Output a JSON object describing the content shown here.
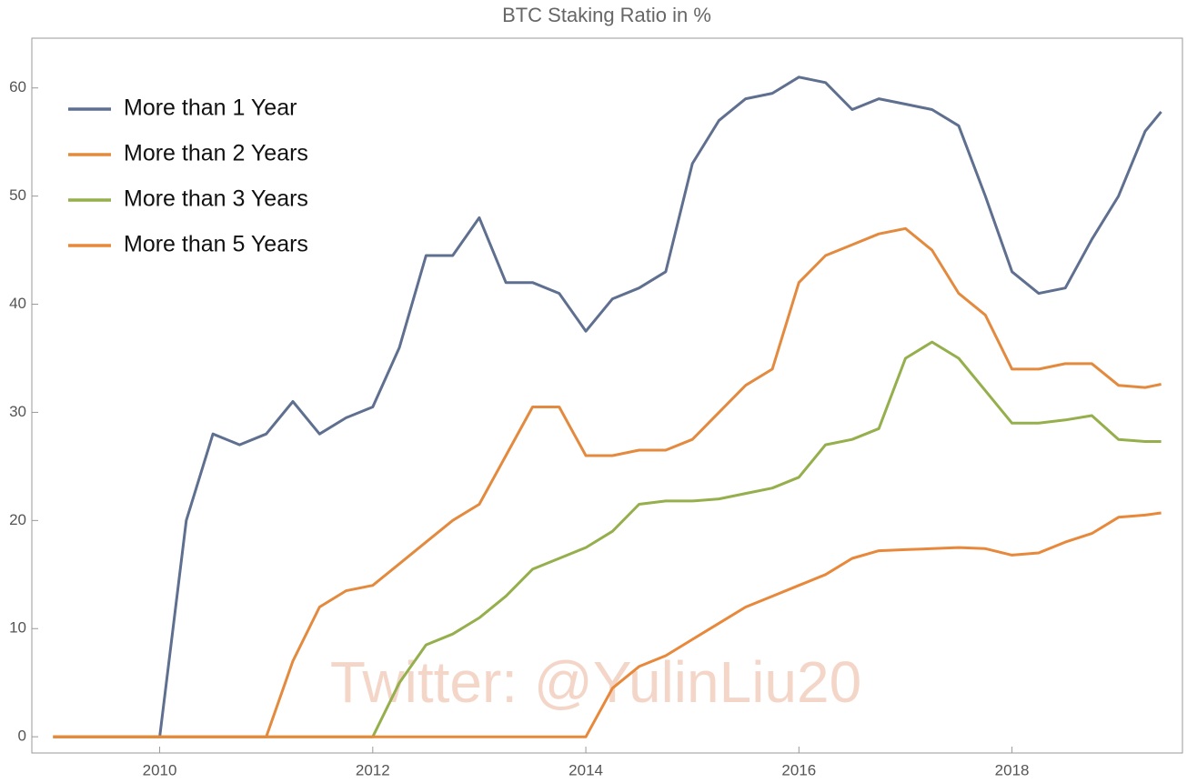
{
  "chart_data": {
    "type": "line",
    "title": "BTC Staking Ratio in %",
    "annotation": "Twitter: @YulinLiu20",
    "x": [
      2009,
      2009.25,
      2009.5,
      2009.75,
      2010,
      2010.25,
      2010.5,
      2010.75,
      2011,
      2011.25,
      2011.5,
      2011.75,
      2012,
      2012.25,
      2012.5,
      2012.75,
      2013,
      2013.25,
      2013.5,
      2013.75,
      2014,
      2014.25,
      2014.5,
      2014.75,
      2015,
      2015.25,
      2015.5,
      2015.75,
      2016,
      2016.25,
      2016.5,
      2016.75,
      2017,
      2017.25,
      2017.5,
      2017.75,
      2018,
      2018.25,
      2018.5,
      2018.75,
      2019,
      2019.25,
      2019.4
    ],
    "series": [
      {
        "name": "More than 1 Year",
        "color": "#5f6f8f",
        "values": [
          0,
          0,
          0,
          0,
          0,
          20,
          28,
          27,
          28,
          31,
          28,
          29.5,
          30.5,
          36,
          44.5,
          44.5,
          48,
          42,
          42,
          41,
          37.5,
          40.5,
          41.5,
          43,
          53,
          57,
          59,
          59.5,
          61,
          60.5,
          58,
          59,
          58.5,
          58,
          56.5,
          50,
          43,
          41,
          41.5,
          46,
          50,
          56,
          57.8
        ]
      },
      {
        "name": "More than 2 Years",
        "color": "#e38a3e",
        "values": [
          0,
          0,
          0,
          0,
          0,
          0,
          0,
          0,
          0,
          7,
          12,
          13.5,
          14,
          16,
          18,
          20,
          21.5,
          26,
          30.5,
          30.5,
          26,
          26,
          26.5,
          26.5,
          27.5,
          30,
          32.5,
          34,
          42,
          44.5,
          45.5,
          46.5,
          47,
          45,
          41,
          39,
          34,
          34,
          34.5,
          34.5,
          32.5,
          32.3,
          32.6
        ]
      },
      {
        "name": "More than 3 Years",
        "color": "#94af4b",
        "values": [
          0,
          0,
          0,
          0,
          0,
          0,
          0,
          0,
          0,
          0,
          0,
          0,
          0,
          5,
          8.5,
          9.5,
          11,
          13,
          15.5,
          16.5,
          17.5,
          19,
          21.5,
          21.8,
          21.8,
          22,
          22.5,
          23,
          24,
          27,
          27.5,
          28.5,
          35,
          36.5,
          35,
          32,
          29,
          29,
          29.3,
          29.7,
          27.5,
          27.3,
          27.3
        ]
      },
      {
        "name": "More than 5 Years",
        "color": "#e8883a",
        "values": [
          0,
          0,
          0,
          0,
          0,
          0,
          0,
          0,
          0,
          0,
          0,
          0,
          0,
          0,
          0,
          0,
          0,
          0,
          0,
          0,
          0,
          4.5,
          6.5,
          7.5,
          9,
          10.5,
          12,
          13,
          14,
          15,
          16.5,
          17.2,
          17.3,
          17.4,
          17.5,
          17.4,
          16.8,
          17,
          18,
          18.8,
          20.3,
          20.5,
          20.7
        ]
      }
    ],
    "xlim": [
      2008.8,
      2019.6
    ],
    "xticks": [
      2010,
      2012,
      2014,
      2016,
      2018
    ],
    "ylim": [
      -1.5,
      64.6
    ],
    "yticks": [
      0,
      10,
      20,
      30,
      40,
      50,
      60
    ],
    "legend": "upper-left"
  }
}
